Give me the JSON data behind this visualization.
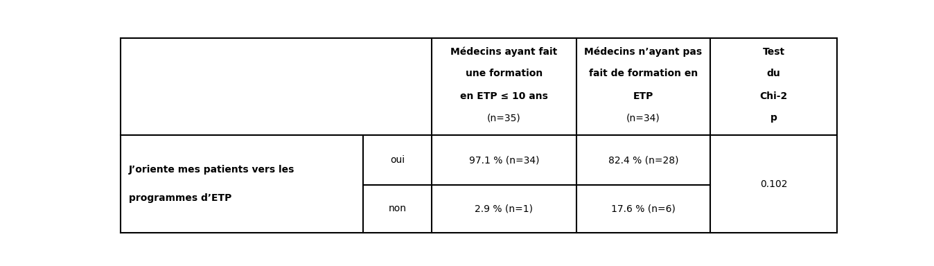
{
  "col1_header_line1": "Médecins ayant fait",
  "col1_header_line2": "une formation",
  "col1_header_line3": "en ETP ≤ 10 ans",
  "col1_header_line4": "(n=35)",
  "col2_header_line1": "Médecins n’ayant pas",
  "col2_header_line2": "fait de formation en",
  "col2_header_line3": "ETP",
  "col2_header_line4": "(n=34)",
  "col3_header_line1": "Test",
  "col3_header_line2": "du",
  "col3_header_line3": "Chi-2",
  "col3_header_line4": "p",
  "row_label_bold_line1": "J’oriente mes patients vers les",
  "row_label_bold_line2": "programmes d’ETP",
  "row1_sub": "oui",
  "row1_col1": "97.1 % (n=34)",
  "row1_col2": "82.4 % (n=28)",
  "row2_sub": "non",
  "row2_col1": "2.9 % (n=1)",
  "row2_col2": "17.6 % (n=6)",
  "chi2_p": "0.102",
  "bg_color": "#ffffff",
  "text_color": "#000000",
  "border_color": "#000000"
}
